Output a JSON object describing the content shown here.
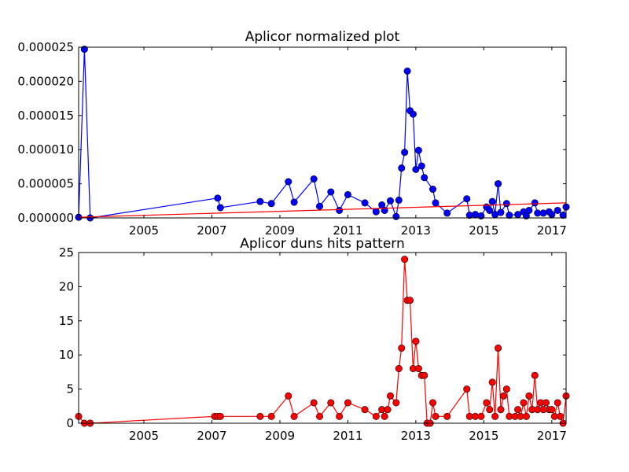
{
  "chart_data": [
    {
      "type": "line",
      "title": "Aplicor normalized plot",
      "xlabel": "",
      "ylabel": "",
      "xlim": [
        2003.08,
        2017.42
      ],
      "ylim": [
        0,
        2.5e-05
      ],
      "grid": false,
      "line_color": "#0000ff",
      "trend_color": "#ff0000",
      "x_ticks": [
        2005,
        2007,
        2009,
        2011,
        2013,
        2015,
        2017
      ],
      "x_tick_labels": [
        "2005",
        "2007",
        "2009",
        "2011",
        "2013",
        "2015",
        "2017"
      ],
      "y_ticks": [
        0,
        5e-06,
        1e-05,
        1.5e-05,
        2e-05,
        2.5e-05
      ],
      "y_tick_labels": [
        "0.000000",
        "0.000005",
        "0.000010",
        "0.000015",
        "0.000020",
        "0.000025"
      ],
      "trend": {
        "x": [
          2003.08,
          2017.42
        ],
        "y": [
          1e-07,
          2.2e-06
        ]
      },
      "series": [
        {
          "x": [
            2003.08,
            2003.25,
            2003.42,
            2007.17,
            2007.25,
            2008.42,
            2008.75,
            2009.25,
            2009.42,
            2010.0,
            2010.17,
            2010.5,
            2010.75,
            2011.0,
            2011.5,
            2011.83,
            2012.0,
            2012.08,
            2012.25,
            2012.42,
            2012.5,
            2012.58,
            2012.67,
            2012.75,
            2012.83,
            2012.92,
            2013.0,
            2013.08,
            2013.17,
            2013.25,
            2013.5,
            2013.58,
            2013.92,
            2014.5,
            2014.58,
            2014.75,
            2014.92,
            2015.08,
            2015.17,
            2015.25,
            2015.33,
            2015.42,
            2015.5,
            2015.67,
            2015.75,
            2016.0,
            2016.17,
            2016.25,
            2016.33,
            2016.5,
            2016.58,
            2016.75,
            2016.92,
            2017.0,
            2017.17,
            2017.33,
            2017.42
          ],
          "y": [
            1e-07,
            2.47e-05,
            0,
            2.9e-06,
            1.5e-06,
            2.4e-06,
            2.1e-06,
            5.3e-06,
            2.3e-06,
            5.7e-06,
            1.7e-06,
            3.8e-06,
            1.1e-06,
            3.4e-06,
            2.2e-06,
            9e-07,
            1.9e-06,
            1.1e-06,
            2.5e-06,
            2e-07,
            2.6e-06,
            7.3e-06,
            9.6e-06,
            2.15e-05,
            1.57e-05,
            1.52e-05,
            7.1e-06,
            9.9e-06,
            7.6e-06,
            5.9e-06,
            4.2e-06,
            2.2e-06,
            7e-07,
            2.8e-06,
            4e-07,
            5e-07,
            3e-07,
            1.6e-06,
            1.1e-06,
            2.4e-06,
            5e-07,
            5e-06,
            8e-07,
            2.1e-06,
            4e-07,
            5e-07,
            9e-07,
            3e-07,
            1.1e-06,
            2.2e-06,
            7e-07,
            7e-07,
            9e-07,
            5e-07,
            1.1e-06,
            4e-07,
            1.6e-06
          ]
        }
      ]
    },
    {
      "type": "line",
      "title": "Aplicor duns hits pattern",
      "xlabel": "",
      "ylabel": "",
      "xlim": [
        2003.08,
        2017.42
      ],
      "ylim": [
        0,
        25
      ],
      "grid": false,
      "line_color": "#ff0000",
      "x_ticks": [
        2005,
        2007,
        2009,
        2011,
        2013,
        2015,
        2017
      ],
      "x_tick_labels": [
        "2005",
        "2007",
        "2009",
        "2011",
        "2013",
        "2015",
        "2017"
      ],
      "y_ticks": [
        0,
        5,
        10,
        15,
        20,
        25
      ],
      "y_tick_labels": [
        "0",
        "5",
        "10",
        "15",
        "20",
        "25"
      ],
      "series": [
        {
          "x": [
            2003.08,
            2003.25,
            2003.42,
            2007.08,
            2007.17,
            2007.25,
            2008.42,
            2008.75,
            2009.25,
            2009.42,
            2010.0,
            2010.17,
            2010.5,
            2010.75,
            2011.0,
            2011.5,
            2011.83,
            2012.0,
            2012.08,
            2012.17,
            2012.25,
            2012.42,
            2012.5,
            2012.58,
            2012.67,
            2012.75,
            2012.83,
            2012.92,
            2013.0,
            2013.08,
            2013.17,
            2013.25,
            2013.33,
            2013.42,
            2013.5,
            2013.58,
            2013.92,
            2014.5,
            2014.58,
            2014.75,
            2014.92,
            2015.08,
            2015.17,
            2015.25,
            2015.33,
            2015.42,
            2015.5,
            2015.58,
            2015.67,
            2015.75,
            2015.92,
            2016.0,
            2016.08,
            2016.17,
            2016.25,
            2016.33,
            2016.42,
            2016.5,
            2016.58,
            2016.67,
            2016.75,
            2016.83,
            2016.92,
            2017.0,
            2017.08,
            2017.17,
            2017.25,
            2017.33,
            2017.42
          ],
          "y": [
            1,
            0,
            0,
            1,
            1,
            1,
            1,
            1,
            4,
            1,
            3,
            1,
            3,
            1,
            3,
            2,
            1,
            2,
            1,
            2,
            4,
            3,
            8,
            11,
            24,
            18,
            18,
            8,
            12,
            8,
            7,
            7,
            0,
            0,
            3,
            1,
            1,
            5,
            1,
            1,
            1,
            3,
            2,
            6,
            1,
            11,
            2,
            4,
            5,
            1,
            1,
            2,
            1,
            3,
            1,
            4,
            2,
            7,
            2,
            3,
            2,
            3,
            2,
            2,
            1,
            3,
            1,
            0,
            4
          ]
        }
      ]
    }
  ]
}
